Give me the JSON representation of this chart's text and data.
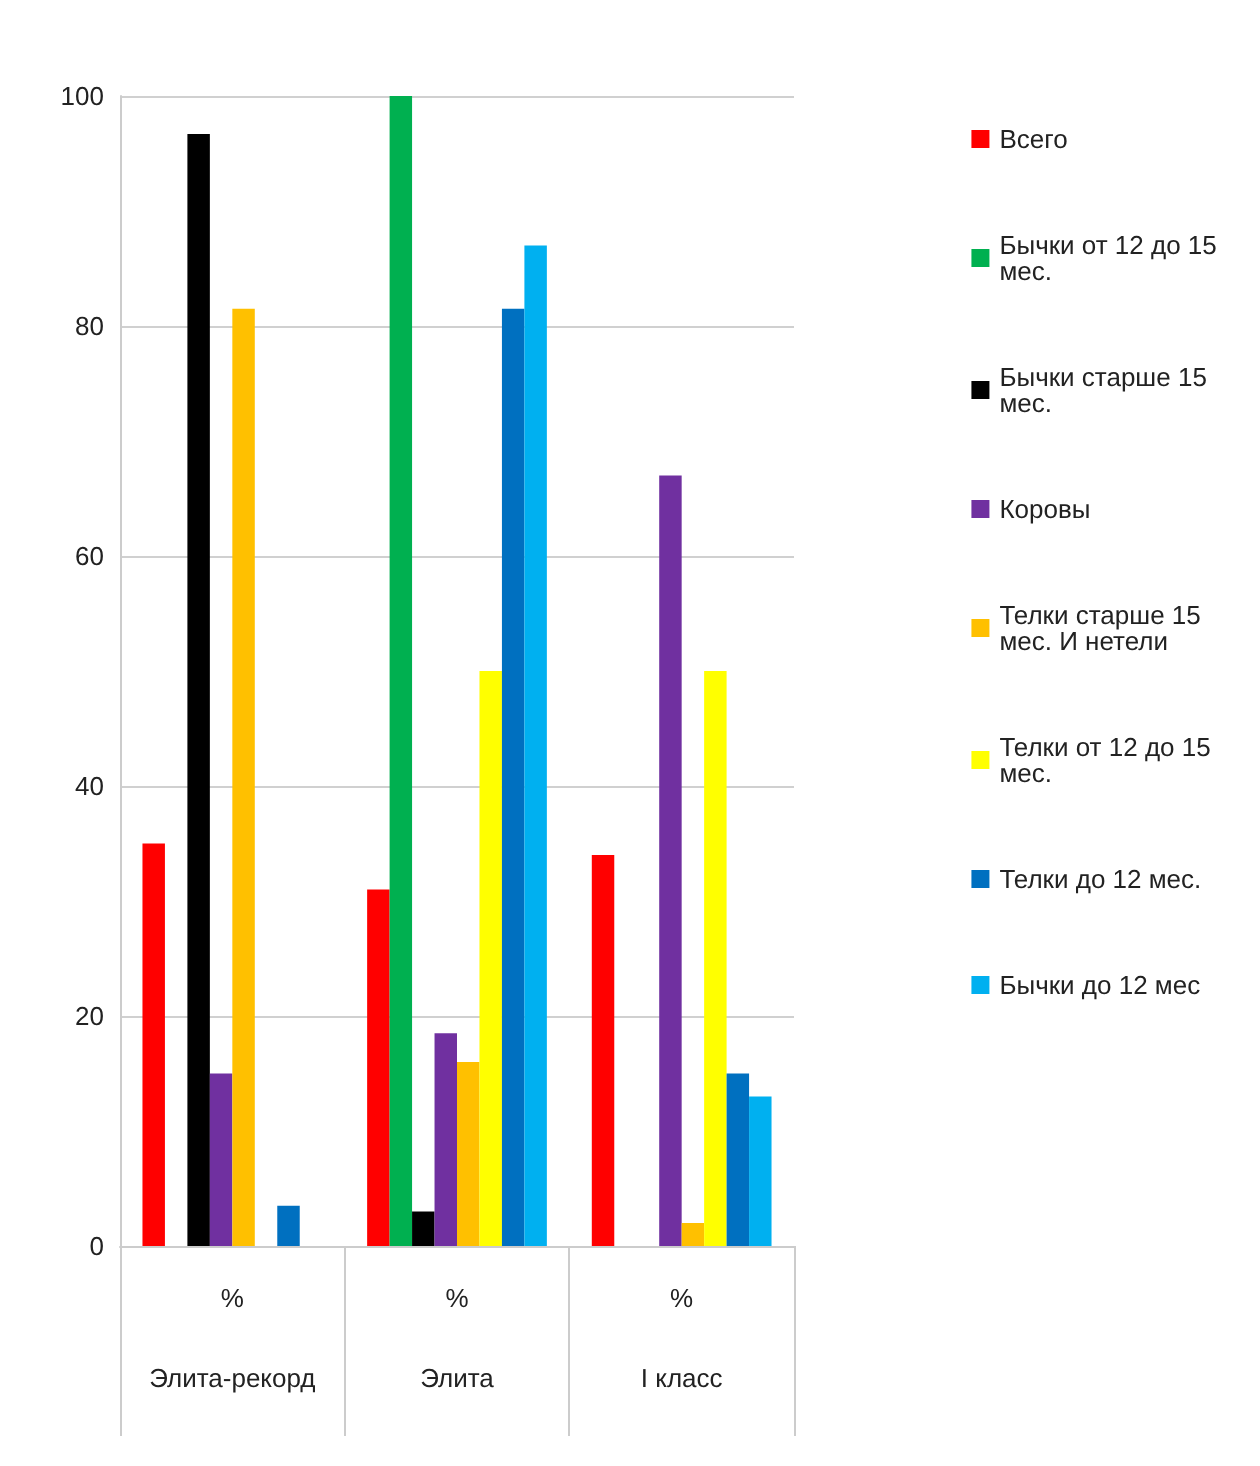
{
  "chart_data": {
    "type": "bar",
    "categories": [
      "%\nЭлита-рекорд",
      "%\nЭлита",
      "%\nI класс"
    ],
    "series": [
      {
        "name": "Всего",
        "color": "#ff0000",
        "values": [
          35,
          31,
          34
        ]
      },
      {
        "name": "Бычки от 12 до 15 мес.",
        "color": "#00b050",
        "values": [
          0,
          100,
          0
        ]
      },
      {
        "name": "Бычки старше 15 мес.",
        "color": "#000000",
        "values": [
          96.7,
          3,
          0
        ]
      },
      {
        "name": "Коровы",
        "color": "#7030a0",
        "values": [
          15,
          18.5,
          67
        ]
      },
      {
        "name": "Телки старше 15 мес. И нетели",
        "color": "#ffc000",
        "values": [
          81.5,
          16,
          2
        ]
      },
      {
        "name": "Телки от 12 до 15 мес.",
        "color": "#ffff00",
        "values": [
          0,
          50,
          50
        ]
      },
      {
        "name": "Телки до 12 мес.",
        "color": "#0070c0",
        "values": [
          3.5,
          81.5,
          15
        ]
      },
      {
        "name": "Бычки до 12 мес",
        "color": "#00b0f0",
        "values": [
          0,
          87,
          13
        ]
      }
    ],
    "ylim": [
      0,
      100
    ],
    "yticks": [
      0,
      20,
      40,
      60,
      80,
      100
    ],
    "grid": "y",
    "legend": "right"
  }
}
